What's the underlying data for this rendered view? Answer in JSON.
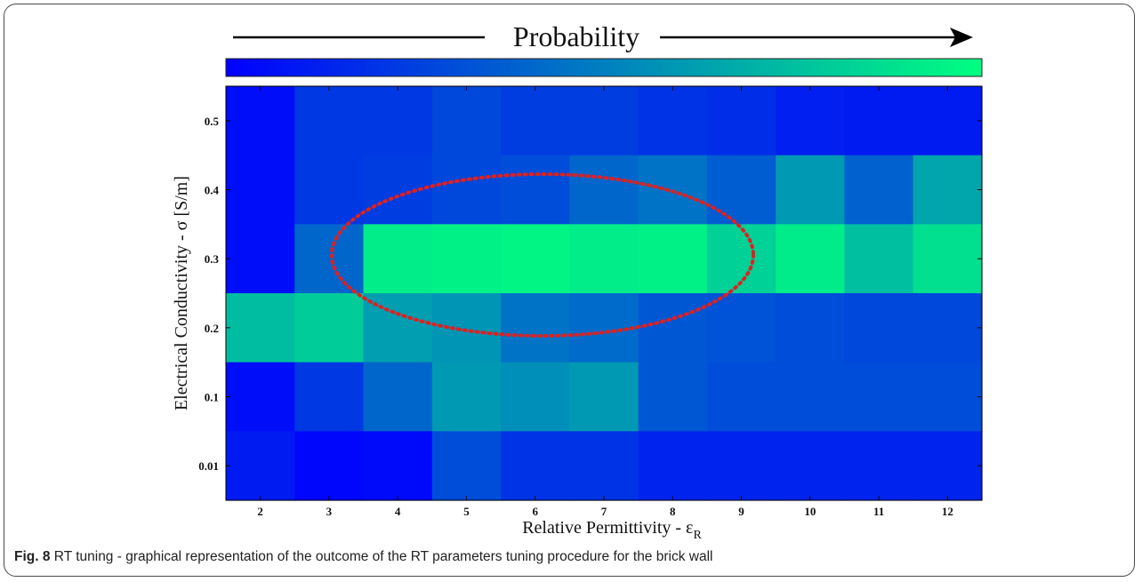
{
  "chart_data": {
    "type": "heatmap",
    "title": "Probability",
    "xlabel": "Relative Permittivity - ε",
    "xlabel_sub": "R",
    "ylabel": "Electrical Conductivity - σ [S/m]",
    "x_categories": [
      "2",
      "3",
      "4",
      "5",
      "6",
      "7",
      "8",
      "9",
      "10",
      "11",
      "12"
    ],
    "y_categories": [
      "0.5",
      "0.4",
      "0.3",
      "0.2",
      "0.1",
      "0.01"
    ],
    "colorscale": {
      "low": "#0000ff",
      "high": "#00ff80"
    },
    "values": [
      [
        0.05,
        0.22,
        0.22,
        0.28,
        0.24,
        0.24,
        0.2,
        0.18,
        0.12,
        0.1,
        0.1
      ],
      [
        0.05,
        0.22,
        0.24,
        0.28,
        0.3,
        0.4,
        0.45,
        0.36,
        0.6,
        0.38,
        0.65
      ],
      [
        0.05,
        0.4,
        0.93,
        0.95,
        0.96,
        0.93,
        0.95,
        0.82,
        0.92,
        0.75,
        0.88
      ],
      [
        0.74,
        0.8,
        0.62,
        0.58,
        0.45,
        0.42,
        0.34,
        0.32,
        0.3,
        0.28,
        0.28
      ],
      [
        0.05,
        0.22,
        0.4,
        0.6,
        0.56,
        0.6,
        0.34,
        0.3,
        0.3,
        0.3,
        0.3
      ],
      [
        0.1,
        0.02,
        0.04,
        0.3,
        0.2,
        0.2,
        0.14,
        0.14,
        0.14,
        0.14,
        0.14
      ]
    ],
    "annotation": {
      "shape": "dotted-ellipse",
      "color": "#e02020",
      "center": [
        6.3,
        0.3
      ]
    }
  },
  "caption": {
    "label": "Fig. 8",
    "text": " RT tuning - graphical representation of the outcome of the RT parameters tuning procedure for the brick wall"
  }
}
